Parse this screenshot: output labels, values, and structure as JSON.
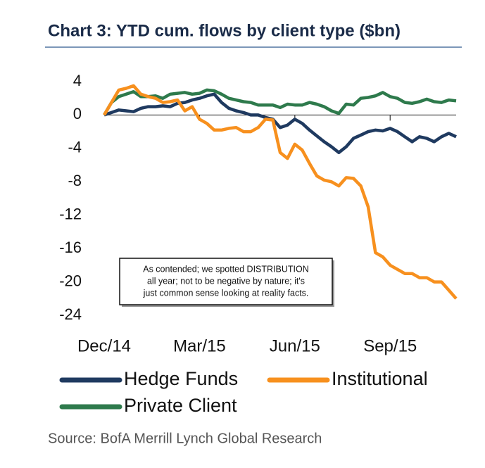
{
  "chart_data": {
    "type": "line",
    "title": "Chart 3: YTD cum. flows by client type ($bn)",
    "source": "Source: BofA Merrill Lynch Global Research",
    "annotation": [
      "As contended; we spotted DISTRIBUTION",
      "all year; not to be negative by nature; it's",
      "just common sense looking at reality facts."
    ],
    "categories": [
      "Dec/14",
      null,
      null,
      null,
      null,
      null,
      null,
      null,
      null,
      null,
      null,
      null,
      null,
      "Mar/15",
      null,
      null,
      null,
      null,
      null,
      null,
      null,
      null,
      null,
      null,
      null,
      null,
      "Jun/15",
      null,
      null,
      null,
      null,
      null,
      null,
      null,
      null,
      null,
      null,
      null,
      null,
      "Sep/15",
      null,
      null,
      null,
      null,
      null,
      null,
      null,
      null,
      null
    ],
    "series": [
      {
        "name": "Hedge Funds",
        "color": "#1f3a60",
        "values": [
          0,
          0.3,
          0.6,
          0.5,
          0.4,
          0.8,
          1,
          1,
          1.1,
          1,
          1.4,
          1.5,
          1.8,
          2,
          2.3,
          2.5,
          1.5,
          0.8,
          0.5,
          0.3,
          0,
          0,
          -0.3,
          -0.5,
          -1.5,
          -1.2,
          -0.5,
          -1,
          -1.8,
          -2.5,
          -3.2,
          -3.8,
          -4.5,
          -3.8,
          -2.8,
          -2.4,
          -2,
          -1.8,
          -1.9,
          -1.6,
          -2,
          -2.6,
          -3.2,
          -2.6,
          -2.8,
          -3.2,
          -2.6,
          -2.2,
          -2.6
        ]
      },
      {
        "name": "Institutional",
        "color": "#f7901e",
        "values": [
          0,
          1.5,
          3,
          3.2,
          3.5,
          2.5,
          2.2,
          2,
          1.5,
          1.6,
          1.8,
          0.5,
          1,
          -0.5,
          -1,
          -1.8,
          -1.8,
          -1.6,
          -1.5,
          -2,
          -2,
          -1.5,
          -0.5,
          -0.6,
          -4.5,
          -5.2,
          -3.5,
          -4.2,
          -5.8,
          -7.3,
          -7.8,
          -8,
          -8.5,
          -7.5,
          -7.6,
          -8.5,
          -11,
          -16.5,
          -17,
          -18,
          -18.5,
          -19,
          -19,
          -19.5,
          -19.5,
          -20,
          -20,
          -21,
          -22
        ]
      },
      {
        "name": "Private Client",
        "color": "#2e7a4c",
        "values": [
          0,
          1.5,
          2.2,
          2.5,
          2.8,
          2.2,
          2.2,
          2.3,
          2,
          2.5,
          2.6,
          2.7,
          2.5,
          2.6,
          3,
          2.9,
          2.5,
          2,
          1.8,
          1.6,
          1.5,
          1.2,
          1.2,
          1.2,
          0.9,
          1.3,
          1.2,
          1.2,
          1.5,
          1.3,
          1,
          0.5,
          0.2,
          1.3,
          1.2,
          2,
          2.1,
          2.3,
          2.7,
          2.2,
          2,
          1.5,
          1.4,
          1.6,
          1.9,
          1.6,
          1.5,
          1.8,
          1.7
        ]
      }
    ],
    "ylim": [
      -24,
      4
    ],
    "yticks": [
      4,
      0,
      -4,
      -8,
      -12,
      -16,
      -20,
      -24
    ]
  }
}
